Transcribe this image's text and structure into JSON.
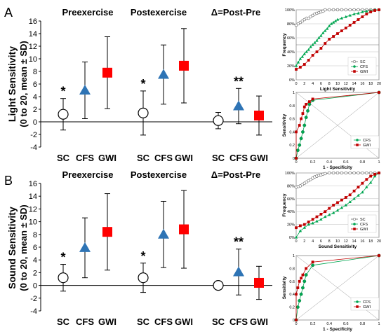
{
  "colors": {
    "sc": "#ffffff",
    "cfs": "#2e74b5",
    "gwi": "#ff0000",
    "green": "#00a651",
    "red": "#c00000",
    "axis": "#000000",
    "grid": "#bfbfbf"
  },
  "panels": [
    {
      "letter": "A",
      "ylabel_line1": "Light Sensitivity",
      "ylabel_line2": "(0 to 20, mean ± SD)"
    },
    {
      "letter": "B",
      "ylabel_line1": "Sound Sensitivity",
      "ylabel_line2": "(0 to 20, mean ± SD)"
    }
  ],
  "chart_data": [
    {
      "id": "light-means",
      "type": "scatter",
      "group_titles": [
        "Preexercise",
        "Postexercise",
        "Δ=Post-Pre"
      ],
      "categories": [
        "SC",
        "CFS",
        "GWI",
        "SC",
        "CFS",
        "GWI",
        "SC",
        "CFS",
        "GWI"
      ],
      "means": [
        1.2,
        5.0,
        7.8,
        1.4,
        7.5,
        8.9,
        0.2,
        2.5,
        1.0
      ],
      "sd": [
        2.5,
        4.5,
        5.7,
        3.5,
        4.7,
        5.9,
        1.3,
        2.8,
        3.1
      ],
      "significance": [
        "*",
        "",
        "",
        "*",
        "",
        "",
        "",
        "**",
        ""
      ],
      "ylim": [
        -4,
        16
      ],
      "yticks": [
        "-4",
        "-2",
        "0",
        "2",
        "4",
        "6",
        "8",
        "10",
        "12",
        "14",
        "16"
      ]
    },
    {
      "id": "light-frequency",
      "type": "line",
      "xlabel": "Light Sensitivity",
      "ylabel": "Frequency",
      "xlim": [
        0,
        20
      ],
      "ylim": [
        0,
        100
      ],
      "xticks": [
        "0",
        "2",
        "4",
        "6",
        "8",
        "10",
        "12",
        "14",
        "16",
        "18",
        "20"
      ],
      "yticks": [
        "0%",
        "20%",
        "40%",
        "60%",
        "80%",
        "100%"
      ],
      "legend": [
        "SC",
        "CFS",
        "GWI"
      ],
      "series": [
        {
          "name": "SC",
          "x": [
            0,
            0.5,
            1,
            1.5,
            2,
            2.5,
            3,
            3.5,
            4,
            4.5,
            5,
            5.5,
            6,
            6.5,
            7,
            8,
            9,
            10,
            11,
            12,
            13,
            14,
            15,
            16,
            17,
            18,
            19,
            20
          ],
          "y": [
            78,
            80,
            82,
            84,
            86,
            88,
            88,
            90,
            92,
            94,
            95,
            96,
            97,
            98,
            100,
            100,
            100,
            100,
            100,
            100,
            100,
            100,
            100,
            100,
            100,
            100,
            100,
            100
          ]
        },
        {
          "name": "CFS",
          "x": [
            0,
            0.5,
            1,
            1.5,
            2,
            2.5,
            3,
            3.5,
            4,
            4.5,
            5,
            5.5,
            6,
            6.5,
            7,
            7.5,
            8,
            8.5,
            9,
            9.5,
            10,
            11,
            12,
            13,
            14,
            15,
            16,
            17,
            18,
            19,
            20
          ],
          "y": [
            20,
            25,
            30,
            33,
            37,
            40,
            43,
            47,
            50,
            53,
            56,
            60,
            63,
            67,
            70,
            73,
            77,
            80,
            82,
            84,
            86,
            88,
            90,
            92,
            94,
            95,
            97,
            98,
            99,
            100,
            100
          ]
        },
        {
          "name": "GWI",
          "x": [
            0,
            1,
            2,
            3,
            4,
            5,
            6,
            7,
            8,
            9,
            10,
            11,
            12,
            13,
            14,
            15,
            16,
            17,
            18,
            19,
            20
          ],
          "y": [
            15,
            18,
            22,
            28,
            35,
            40,
            45,
            52,
            58,
            62,
            66,
            70,
            74,
            78,
            82,
            86,
            90,
            94,
            97,
            99,
            100
          ]
        }
      ]
    },
    {
      "id": "light-roc",
      "type": "line",
      "xlabel": "1 - Specificity",
      "ylabel": "Sensitivity",
      "xlim": [
        0,
        1
      ],
      "ylim": [
        0,
        1
      ],
      "xticks": [
        "0",
        "0.2",
        "0.4",
        "0.6",
        "0.8",
        "1"
      ],
      "yticks": [
        "0",
        "0.2",
        "0.4",
        "0.6",
        "0.8",
        "1"
      ],
      "legend": [
        "CFS",
        "GWI"
      ],
      "series": [
        {
          "name": "CFS",
          "x": [
            0,
            0.02,
            0.04,
            0.06,
            0.08,
            0.1,
            0.12,
            0.14,
            0.16,
            0.2,
            1
          ],
          "y": [
            0,
            0.12,
            0.2,
            0.3,
            0.4,
            0.5,
            0.62,
            0.72,
            0.82,
            0.88,
            1
          ]
        },
        {
          "name": "GWI",
          "x": [
            0,
            0,
            0.04,
            0.06,
            0.08,
            0.1,
            0.12,
            0.16,
            0.2,
            1
          ],
          "y": [
            0,
            0.4,
            0.5,
            0.6,
            0.68,
            0.78,
            0.82,
            0.86,
            0.9,
            1
          ]
        }
      ]
    },
    {
      "id": "sound-means",
      "type": "scatter",
      "group_titles": [
        "Preexercise",
        "Postexercise",
        "Δ=Post-Pre"
      ],
      "categories": [
        "SC",
        "CFS",
        "GWI",
        "SC",
        "CFS",
        "GWI",
        "SC",
        "CFS",
        "GWI"
      ],
      "means": [
        1.2,
        5.9,
        8.4,
        1.2,
        8.0,
        8.8,
        0.0,
        2.1,
        0.4
      ],
      "sd": [
        2.1,
        4.7,
        6.0,
        2.3,
        5.2,
        6.1,
        0.2,
        3.6,
        2.6
      ],
      "significance": [
        "*",
        "",
        "",
        "*",
        "",
        "",
        "",
        "**",
        ""
      ],
      "ylim": [
        -4,
        16
      ],
      "yticks": [
        "-4",
        "-2",
        "0",
        "2",
        "4",
        "6",
        "8",
        "10",
        "12",
        "14",
        "16"
      ]
    },
    {
      "id": "sound-frequency",
      "type": "line",
      "xlabel": "Sound Sensitivity",
      "ylabel": "Frequency",
      "xlim": [
        0,
        20
      ],
      "ylim": [
        0,
        100
      ],
      "xticks": [
        "0",
        "2",
        "4",
        "6",
        "8",
        "10",
        "12",
        "14",
        "16",
        "18",
        "20"
      ],
      "yticks": [
        "0%",
        "20%",
        "40%",
        "60%",
        "80%",
        "100%"
      ],
      "legend": [
        "SC",
        "CFS",
        "GWI"
      ],
      "series": [
        {
          "name": "SC",
          "x": [
            0,
            0.5,
            1,
            1.5,
            2,
            2.5,
            3,
            3.5,
            4,
            4.5,
            5,
            5.5,
            6,
            6.5,
            7,
            8,
            9,
            10,
            11,
            12,
            13,
            14,
            15,
            16,
            17,
            18,
            19,
            20
          ],
          "y": [
            78,
            79,
            80,
            82,
            84,
            86,
            88,
            90,
            92,
            94,
            95,
            96,
            97,
            98,
            99,
            100,
            100,
            100,
            100,
            100,
            100,
            100,
            100,
            100,
            100,
            100,
            100,
            100
          ]
        },
        {
          "name": "CFS",
          "x": [
            0,
            1,
            2,
            3,
            4,
            5,
            6,
            7,
            8,
            9,
            10,
            11,
            12,
            13,
            14,
            15,
            16,
            17,
            18,
            19,
            20
          ],
          "y": [
            0,
            10,
            15,
            20,
            22,
            25,
            28,
            32,
            35,
            38,
            42,
            46,
            50,
            55,
            60,
            65,
            70,
            78,
            85,
            95,
            100
          ]
        },
        {
          "name": "GWI",
          "x": [
            0,
            1,
            2,
            3,
            4,
            5,
            6,
            7,
            8,
            9,
            10,
            11,
            12,
            13,
            14,
            15,
            16,
            17,
            18,
            19,
            20
          ],
          "y": [
            15,
            18,
            20,
            24,
            28,
            32,
            36,
            40,
            45,
            50,
            54,
            58,
            62,
            66,
            72,
            78,
            84,
            90,
            95,
            98,
            100
          ]
        }
      ]
    },
    {
      "id": "sound-roc",
      "type": "line",
      "xlabel": "1 - Specificity",
      "ylabel": "Sensitivity",
      "xlim": [
        0,
        1
      ],
      "ylim": [
        0,
        1
      ],
      "xticks": [
        "0",
        "0.2",
        "0.4",
        "0.6",
        "0.8",
        "1"
      ],
      "yticks": [
        "0",
        "0.2",
        "0.4",
        "0.6",
        "0.8",
        "1"
      ],
      "legend": [
        "CFS",
        "GWI"
      ],
      "series": [
        {
          "name": "CFS",
          "x": [
            0,
            0.02,
            0.04,
            0.06,
            0.08,
            0.1,
            0.12,
            0.2,
            1
          ],
          "y": [
            0,
            0.2,
            0.3,
            0.4,
            0.5,
            0.6,
            0.7,
            0.85,
            1
          ]
        },
        {
          "name": "GWI",
          "x": [
            0,
            0,
            0.02,
            0.04,
            0.06,
            0.08,
            0.12,
            0.2,
            1
          ],
          "y": [
            0,
            0.4,
            0.5,
            0.6,
            0.65,
            0.7,
            0.8,
            0.9,
            1
          ]
        }
      ]
    }
  ]
}
